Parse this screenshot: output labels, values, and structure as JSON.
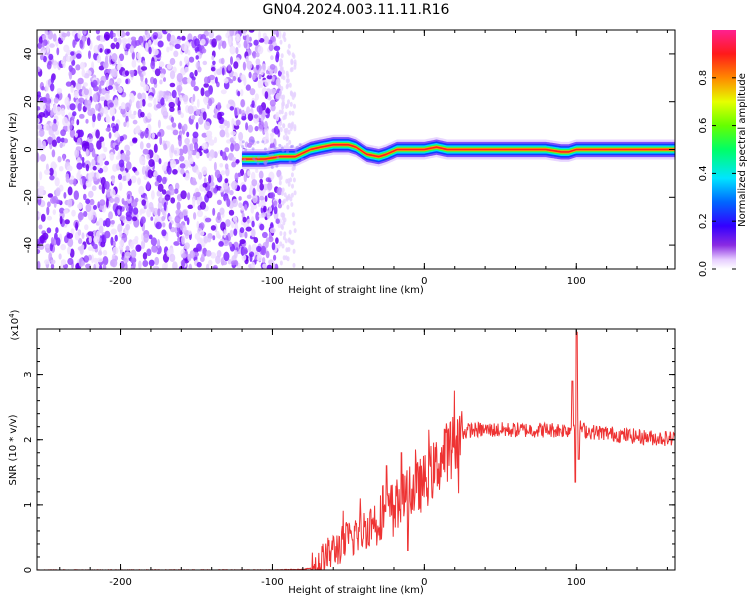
{
  "title": "GN04.2024.003.11.11.R16",
  "chart_data": [
    {
      "type": "heatmap",
      "title": "GN04.2024.003.11.11.R16",
      "xlabel": "Height of straight line (km)",
      "ylabel": "Frequency (Hz)",
      "xlim": [
        -255,
        165
      ],
      "ylim": [
        -50,
        50
      ],
      "xticks": [
        -200,
        -100,
        0,
        100
      ],
      "yticks": [
        -40,
        -20,
        0,
        20,
        40
      ],
      "colorbar": {
        "label": "Normalized spectral amplitude",
        "range": [
          0,
          1
        ],
        "ticks": [
          "0.0",
          "0.2",
          "0.4",
          "0.6",
          "0.8"
        ],
        "colormap": "rainbow (white-violet-blue-cyan-green-yellow-red-magenta)"
      },
      "ridge": {
        "x": [
          -120,
          -105,
          -95,
          -85,
          -75,
          -68,
          -60,
          -50,
          -45,
          -38,
          -30,
          -25,
          -18,
          -10,
          0,
          8,
          15,
          25,
          40,
          60,
          80,
          90,
          95,
          100,
          120,
          165
        ],
        "y": [
          -4,
          -4,
          -3,
          -3,
          0,
          1,
          2,
          2,
          1,
          -2,
          -3,
          -2,
          0,
          0,
          0,
          1,
          0,
          0,
          0,
          0,
          0,
          -1,
          -1,
          0,
          0,
          0
        ]
      },
      "grid": false
    },
    {
      "type": "line",
      "xlabel": "Height of straight line (km)",
      "ylabel": "SNR (10 * v/v)",
      "y_multiplier": "(x10^4)",
      "xlim": [
        -255,
        165
      ],
      "ylim": [
        0,
        3.7
      ],
      "xticks": [
        -200,
        -100,
        0,
        100
      ],
      "yticks": [
        0,
        1,
        2,
        3
      ],
      "series": [
        {
          "color": "#ee3333",
          "x": [
            -255,
            -150,
            -100,
            -80,
            -75,
            -70,
            -65,
            -60,
            -55,
            -50,
            -45,
            -40,
            -35,
            -30,
            -25,
            -20,
            -15,
            -10,
            -5,
            0,
            5,
            10,
            15,
            20,
            25,
            30,
            40,
            50,
            60,
            70,
            80,
            90,
            95,
            98,
            100,
            102,
            105,
            110,
            120,
            130,
            140,
            150,
            160,
            165
          ],
          "y": [
            0.0,
            0.0,
            0.0,
            0.01,
            0.03,
            0.08,
            0.2,
            0.3,
            0.38,
            0.45,
            0.55,
            0.62,
            0.72,
            0.8,
            0.9,
            1.0,
            1.08,
            1.15,
            1.25,
            1.35,
            1.5,
            1.65,
            1.82,
            1.98,
            2.1,
            2.15,
            2.15,
            2.15,
            2.15,
            2.15,
            2.15,
            2.15,
            2.15,
            2.2,
            2.3,
            2.2,
            2.15,
            2.12,
            2.1,
            2.07,
            2.05,
            2.03,
            2.02,
            2.02
          ]
        }
      ],
      "annotations": [
        {
          "x": 100,
          "y": 3.65,
          "note": "spike"
        },
        {
          "x": 100,
          "y": 1.35,
          "note": "dip"
        },
        {
          "x": -15,
          "y": 1.8,
          "note": "spike"
        }
      ],
      "grid": false
    }
  ]
}
